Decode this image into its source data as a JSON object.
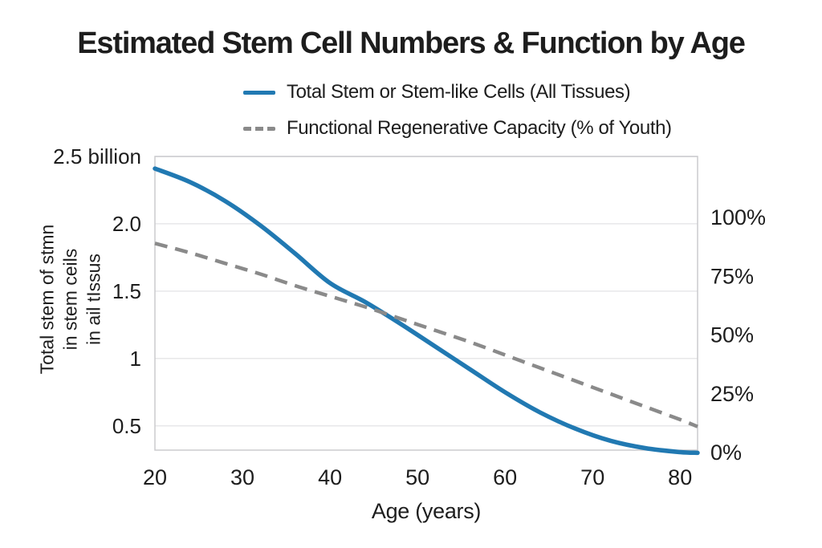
{
  "title": "Estimated Stem Cell Numbers & Function by Age",
  "legend": {
    "items": [
      {
        "label": "Total Stem or Stem-like Cells (All Tissues)",
        "color": "#2179b2",
        "style": "solid"
      },
      {
        "label": "Functional Regenerative Capacity (% of Youth)",
        "color": "#8a8a8a",
        "style": "dashed"
      }
    ]
  },
  "axes": {
    "x_title": "Age (years)",
    "y_left_title_lines": [
      "Total stem of stmn",
      "in stem ceils",
      "in ail tIssus"
    ]
  },
  "colors": {
    "stem_cells_line": "#2179b2",
    "regen_capacity_line": "#8a8a8a",
    "gridline": "#e7e7e9",
    "frame": "#cbcbce",
    "text": "#1d1d1d"
  },
  "chart_data": {
    "type": "line",
    "title": "Estimated Stem Cell Numbers & Function by Age",
    "xlabel": "Age (years)",
    "ylabel_left": "Total stem of stmn in stem ceils in ail tIssus",
    "ylabel_right": "Functional Regenerative Capacity (% of Youth)",
    "grid": true,
    "legend_position": "top-center",
    "xlim": [
      20,
      82
    ],
    "x_ticks": {
      "values": [
        20,
        30,
        40,
        50,
        60,
        70,
        80
      ],
      "labels": [
        "20",
        "30",
        "40",
        "50",
        "60",
        "70",
        "80"
      ]
    },
    "left_axis": {
      "range": [
        0.32,
        2.5
      ],
      "unit": "billions of cells",
      "tick_values": [
        0.5,
        1,
        1.5,
        2.0,
        2.5
      ],
      "tick_labels": [
        "0.5",
        "1",
        "1.5",
        "2.0",
        "2.5 billion"
      ]
    },
    "right_axis": {
      "range": [
        0,
        125
      ],
      "unit": "% of youth",
      "tick_values": [
        0,
        25,
        50,
        75,
        100
      ],
      "tick_labels": [
        "0%",
        "25%",
        "50%",
        "75%",
        "100%"
      ]
    },
    "series": [
      {
        "name": "Total Stem or Stem-like Cells (All Tissues)",
        "axis": "left",
        "style": "solid",
        "color": "#2179b2",
        "width": 5.5,
        "x": [
          20,
          24,
          28,
          32,
          36,
          40,
          44,
          48,
          52,
          56,
          60,
          64,
          68,
          72,
          76,
          80,
          82
        ],
        "y": [
          2.41,
          2.31,
          2.17,
          1.99,
          1.78,
          1.56,
          1.42,
          1.26,
          1.09,
          0.92,
          0.75,
          0.6,
          0.48,
          0.39,
          0.335,
          0.305,
          0.3
        ]
      },
      {
        "name": "Functional Regenerative Capacity (% of Youth)",
        "axis": "right",
        "style": "dashed",
        "color": "#8a8a8a",
        "width": 4.5,
        "x": [
          20,
          24,
          28,
          32,
          36,
          40,
          44,
          48,
          52,
          56,
          60,
          64,
          68,
          72,
          76,
          80,
          82
        ],
        "y": [
          88,
          84,
          79.5,
          75,
          70,
          65.5,
          61,
          56,
          51,
          46,
          40.5,
          35,
          29.5,
          24,
          18.5,
          13,
          10
        ]
      }
    ]
  }
}
